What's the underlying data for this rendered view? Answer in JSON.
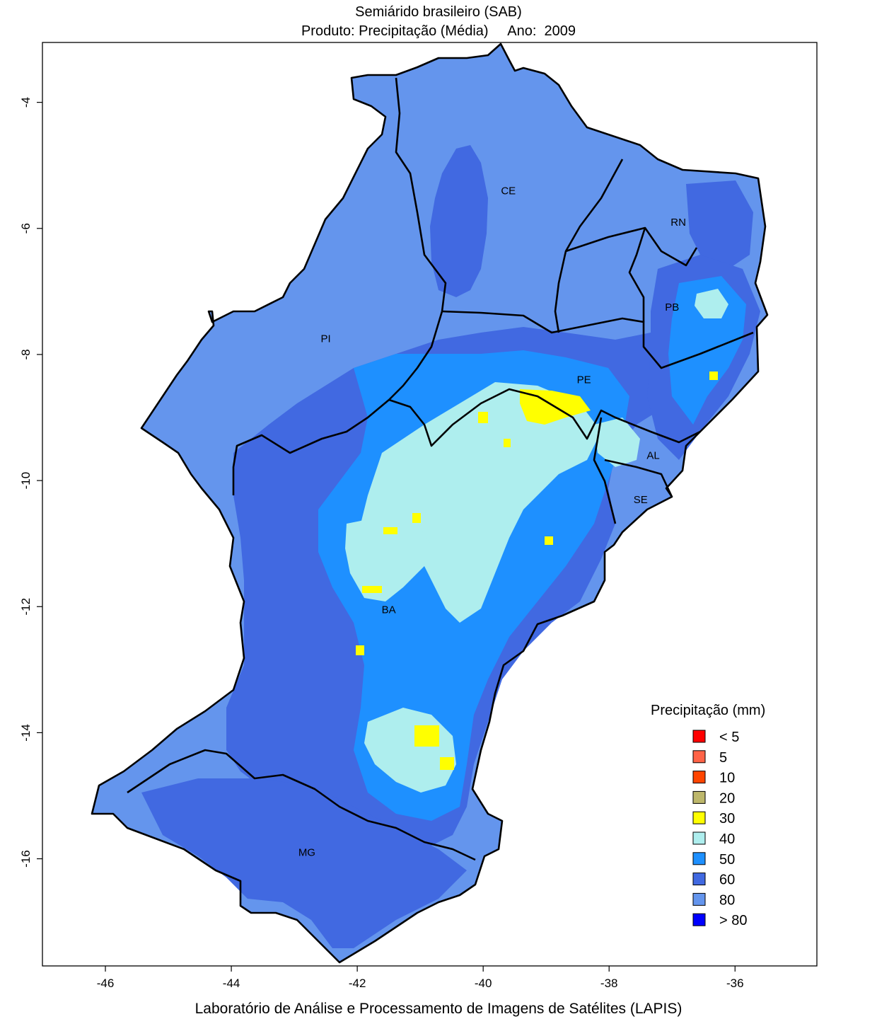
{
  "title": {
    "line1": "Semiárido brasileiro (SAB)",
    "product_label": "Produto: Precipitação (Média)",
    "year_label": "Ano:",
    "year": "2009"
  },
  "footer": "Laboratório de Análise e Processamento de Imagens de Satélites (LAPIS)",
  "axes": {
    "x_ticks": [
      "-46",
      "-44",
      "-42",
      "-40",
      "-38",
      "-36"
    ],
    "y_ticks": [
      "-4",
      "-6",
      "-8",
      "-10",
      "-12",
      "-14",
      "-16"
    ],
    "x_range": [
      -47.0,
      -34.7
    ],
    "y_range": [
      -17.7,
      -3.05
    ]
  },
  "states": [
    {
      "code": "CE",
      "lon": -39.6,
      "lat": -5.4
    },
    {
      "code": "RN",
      "lon": -36.9,
      "lat": -5.9
    },
    {
      "code": "PB",
      "lon": -37.0,
      "lat": -7.25
    },
    {
      "code": "PI",
      "lon": -42.5,
      "lat": -7.75
    },
    {
      "code": "PE",
      "lon": -38.4,
      "lat": -8.4
    },
    {
      "code": "AL",
      "lon": -37.3,
      "lat": -9.6
    },
    {
      "code": "SE",
      "lon": -37.5,
      "lat": -10.3
    },
    {
      "code": "BA",
      "lon": -41.5,
      "lat": -12.05
    },
    {
      "code": "MG",
      "lon": -42.8,
      "lat": -15.9
    }
  ],
  "legend": {
    "title": "Precipitação (mm)",
    "items": [
      {
        "label": "< 5",
        "color": "#ff0000"
      },
      {
        "label": "5",
        "color": "#ff6347"
      },
      {
        "label": "10",
        "color": "#ff4500"
      },
      {
        "label": "20",
        "color": "#bdb76b"
      },
      {
        "label": "30",
        "color": "#ffff00"
      },
      {
        "label": "40",
        "color": "#aeeeee"
      },
      {
        "label": "50",
        "color": "#1e90ff"
      },
      {
        "label": "60",
        "color": "#4169e1"
      },
      {
        "label": "80",
        "color": "#6495ed"
      },
      {
        "label": "> 80",
        "color": "#0000ff"
      }
    ]
  }
}
